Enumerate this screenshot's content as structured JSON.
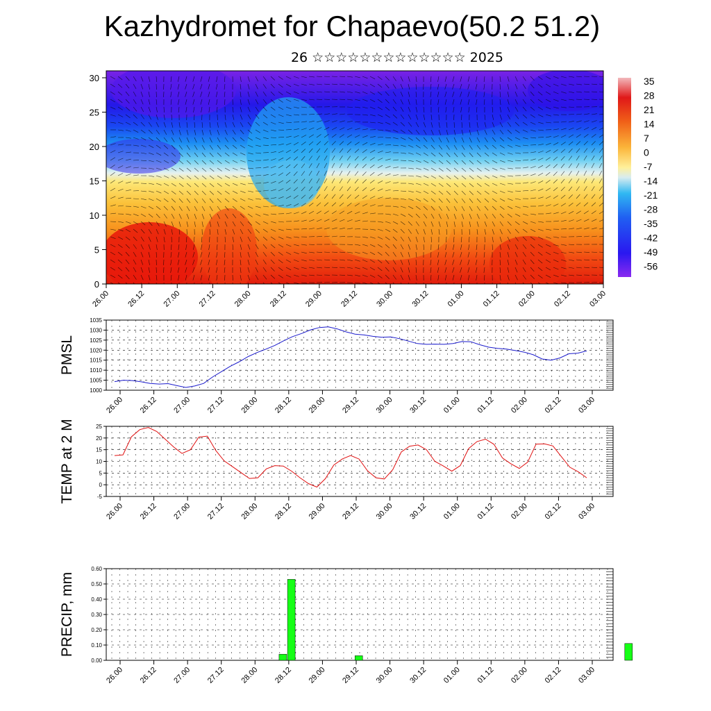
{
  "header": {
    "title": "Kazhydromet for Chapaevo(50.2 51.2)",
    "subtitle": "26 ☆☆☆☆☆☆☆☆☆☆☆☆☆ 2025"
  },
  "colorbar": {
    "labels": [
      "35",
      "28",
      "21",
      "14",
      "7",
      "0",
      "-7",
      "-14",
      "-21",
      "-28",
      "-35",
      "-42",
      "-49",
      "-56"
    ]
  },
  "chart_data": [
    {
      "type": "heatmap",
      "title": "",
      "ylabel": "",
      "ylim": [
        0,
        30
      ],
      "yticks": [
        "0",
        "5",
        "10",
        "15",
        "20",
        "25",
        "30"
      ],
      "x_labels": [
        "26.00",
        "26.12",
        "27.00",
        "27.12",
        "28.00",
        "28.12",
        "29.00",
        "29.12",
        "30.00",
        "30.12",
        "01.00",
        "01.12",
        "02.00",
        "02.12",
        "03.00"
      ],
      "colorscale": [
        "#7b1fe0",
        "#2b16f0",
        "#1a3cf5",
        "#1f7ff2",
        "#34c6f0",
        "#cfe8f2",
        "#fff3a0",
        "#fde25a",
        "#f9b233",
        "#f27a1a",
        "#ea3a0e",
        "#e0180a"
      ],
      "note_overlay": "wind barbs"
    },
    {
      "type": "line",
      "ylabel": "PMSL",
      "ylim": [
        1000,
        1035
      ],
      "yticks": [
        "1000",
        "1005",
        "1010",
        "1015",
        "1020",
        "1025",
        "1030",
        "1035"
      ],
      "x_labels": [
        "26.00",
        "26.12",
        "27.00",
        "27.12",
        "28.00",
        "28.12",
        "29.00",
        "29.12",
        "30.00",
        "30.12",
        "01.00",
        "01.12",
        "02.00",
        "02.12",
        "03.00"
      ],
      "series": [
        {
          "color": "#1a1acc",
          "values": [
            1004.3,
            1005.0,
            1004.8,
            1004.2,
            1003.4,
            1003.1,
            1003.3,
            1002.3,
            1001.4,
            1002.1,
            1003.4,
            1006.6,
            1009.3,
            1012.0,
            1014.2,
            1016.8,
            1018.8,
            1020.5,
            1022.4,
            1024.7,
            1026.8,
            1028.3,
            1030.1,
            1031.3,
            1031.6,
            1030.6,
            1029.1,
            1028.0,
            1027.6,
            1026.9,
            1026.4,
            1026.6,
            1025.7,
            1024.5,
            1023.3,
            1022.9,
            1023.0,
            1022.9,
            1023.3,
            1024.3,
            1024.2,
            1022.7,
            1021.5,
            1020.9,
            1020.5,
            1019.8,
            1019.0,
            1017.7,
            1015.6,
            1015.0,
            1016.1,
            1018.2,
            1018.5,
            1019.6
          ]
        }
      ]
    },
    {
      "type": "line",
      "ylabel": "TEMP at 2 M",
      "ylim": [
        -5,
        25
      ],
      "yticks": [
        "-5",
        "0",
        "5",
        "10",
        "15",
        "20",
        "25"
      ],
      "x_labels": [
        "26.00",
        "26.12",
        "27.00",
        "27.12",
        "28.00",
        "28.12",
        "29.00",
        "29.12",
        "30.00",
        "30.12",
        "01.00",
        "01.12",
        "02.00",
        "02.12",
        "03.00"
      ],
      "series": [
        {
          "color": "#e01010",
          "values": [
            12.5,
            12.8,
            20.5,
            23.6,
            24.5,
            22.8,
            19.5,
            16.2,
            13.4,
            15.0,
            20.4,
            20.8,
            14.7,
            10.2,
            7.7,
            5.2,
            2.7,
            3.0,
            6.8,
            8.2,
            8.0,
            5.8,
            3.0,
            0.5,
            -1.0,
            2.6,
            8.4,
            11.0,
            12.5,
            11.0,
            6.0,
            3.0,
            2.5,
            6.5,
            14.0,
            16.5,
            17.0,
            15.0,
            10.0,
            8.0,
            5.8,
            8.2,
            15.5,
            18.5,
            19.5,
            17.3,
            11.5,
            9.0,
            7.0,
            9.7,
            17.4,
            17.5,
            16.6,
            12.0,
            7.5,
            5.5,
            3.0
          ]
        }
      ]
    },
    {
      "type": "bar",
      "ylabel": "PRECIP, mm",
      "ylim": [
        0,
        0.6
      ],
      "yticks": [
        "0.00",
        "0.10",
        "0.20",
        "0.30",
        "0.40",
        "0.50",
        "0.60"
      ],
      "x_labels": [
        "26.00",
        "26.12",
        "27.00",
        "27.12",
        "28.00",
        "28.12",
        "29.00",
        "29.12",
        "30.00",
        "30.12",
        "01.00",
        "01.12",
        "02.00",
        "02.12",
        "03.00"
      ],
      "bars": [
        {
          "time_index": 10,
          "value": 0.04
        },
        {
          "time_index": 11,
          "value": 0.53
        },
        {
          "time_index": 19,
          "value": 0.03
        },
        {
          "time_index": 51,
          "value": 0.11
        }
      ],
      "bar_color": "#16ff16"
    }
  ]
}
